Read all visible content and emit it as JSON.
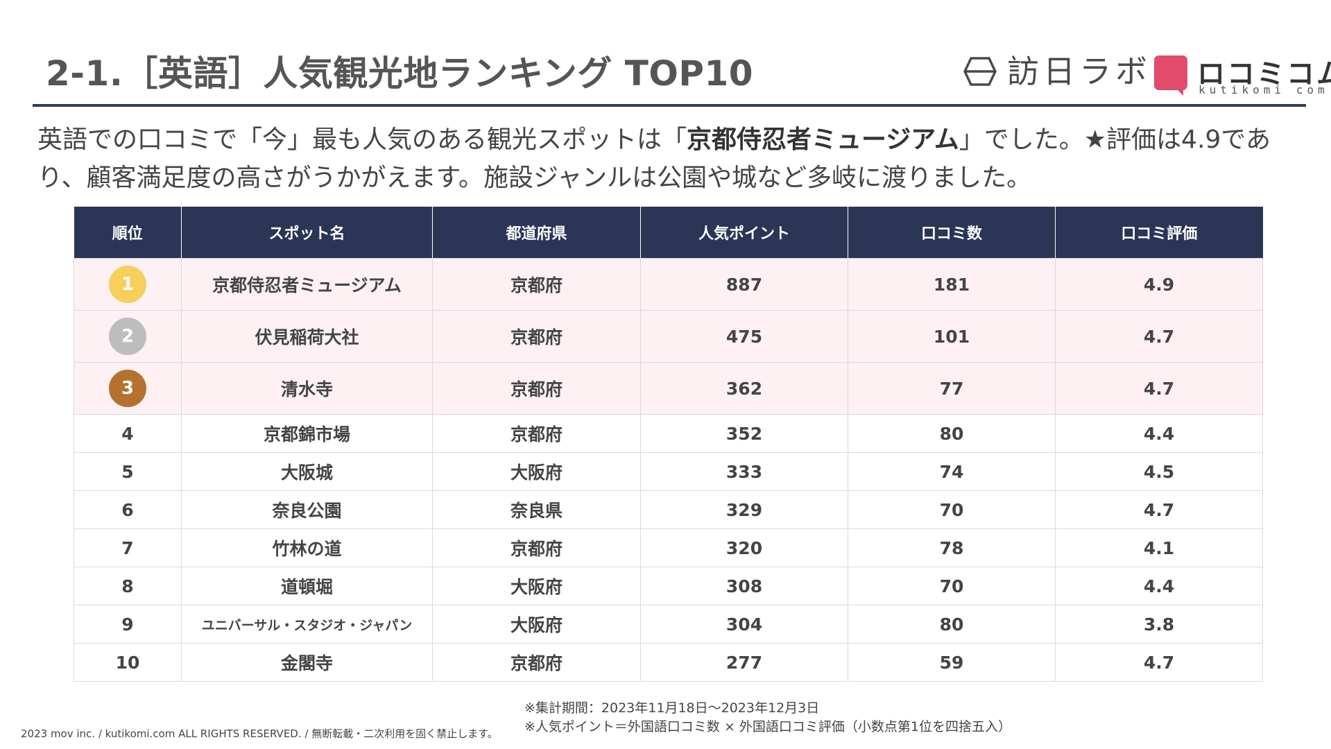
{
  "title": "2-1.［英語］人気観光地ランキング TOP10",
  "logos": {
    "hojin_name": "訪日ラボ",
    "kutikomi_name": "ロコミコム",
    "kutikomi_sub": "kutikomi com",
    "kutikomi_color": "#e34b6c"
  },
  "intro": {
    "part1": "英語での口コミで「今」最も人気のある観光スポットは「",
    "highlight": "京都侍忍者ミュージアム",
    "part2": "」でした。★評価は4.9であり、顧客満足度の高さがうかがえます。施設ジャンルは公園や城など多岐に渡りました。"
  },
  "table": {
    "headers": [
      "順位",
      "スポット名",
      "都道府県",
      "人気ポイント",
      "口コミ数",
      "口コミ評価"
    ],
    "medal_colors": [
      "#f6cf5d",
      "#bdbdbd",
      "#b5712e"
    ],
    "header_color": "#2b3556",
    "rows": [
      {
        "rank": "1",
        "name": "京都侍忍者ミュージアム",
        "pref": "京都府",
        "points": "887",
        "reviews": "181",
        "rating": "4.9"
      },
      {
        "rank": "2",
        "name": "伏見稲荷大社",
        "pref": "京都府",
        "points": "475",
        "reviews": "101",
        "rating": "4.7"
      },
      {
        "rank": "3",
        "name": "清水寺",
        "pref": "京都府",
        "points": "362",
        "reviews": "77",
        "rating": "4.7"
      },
      {
        "rank": "4",
        "name": "京都錦市場",
        "pref": "京都府",
        "points": "352",
        "reviews": "80",
        "rating": "4.4"
      },
      {
        "rank": "5",
        "name": "大阪城",
        "pref": "大阪府",
        "points": "333",
        "reviews": "74",
        "rating": "4.5"
      },
      {
        "rank": "6",
        "name": "奈良公園",
        "pref": "奈良県",
        "points": "329",
        "reviews": "70",
        "rating": "4.7"
      },
      {
        "rank": "7",
        "name": "竹林の道",
        "pref": "京都府",
        "points": "320",
        "reviews": "78",
        "rating": "4.1"
      },
      {
        "rank": "8",
        "name": "道頓堀",
        "pref": "大阪府",
        "points": "308",
        "reviews": "70",
        "rating": "4.4"
      },
      {
        "rank": "9",
        "name": "ユニバーサル・スタジオ・ジャパン",
        "pref": "大阪府",
        "points": "304",
        "reviews": "80",
        "rating": "3.8"
      },
      {
        "rank": "10",
        "name": "金閣寺",
        "pref": "京都府",
        "points": "277",
        "reviews": "59",
        "rating": "4.7"
      }
    ]
  },
  "notes": {
    "period": "※集計期間：2023年11月18日～2023年12月3日",
    "formula": "※人気ポイント＝外国語口コミ数 × 外国語口コミ評価（小数点第1位を四捨五入）"
  },
  "copyright": "2023 mov inc. / kutikomi.com ALL RIGHTS RESERVED. / 無断転載・二次利用を固く禁止します。"
}
